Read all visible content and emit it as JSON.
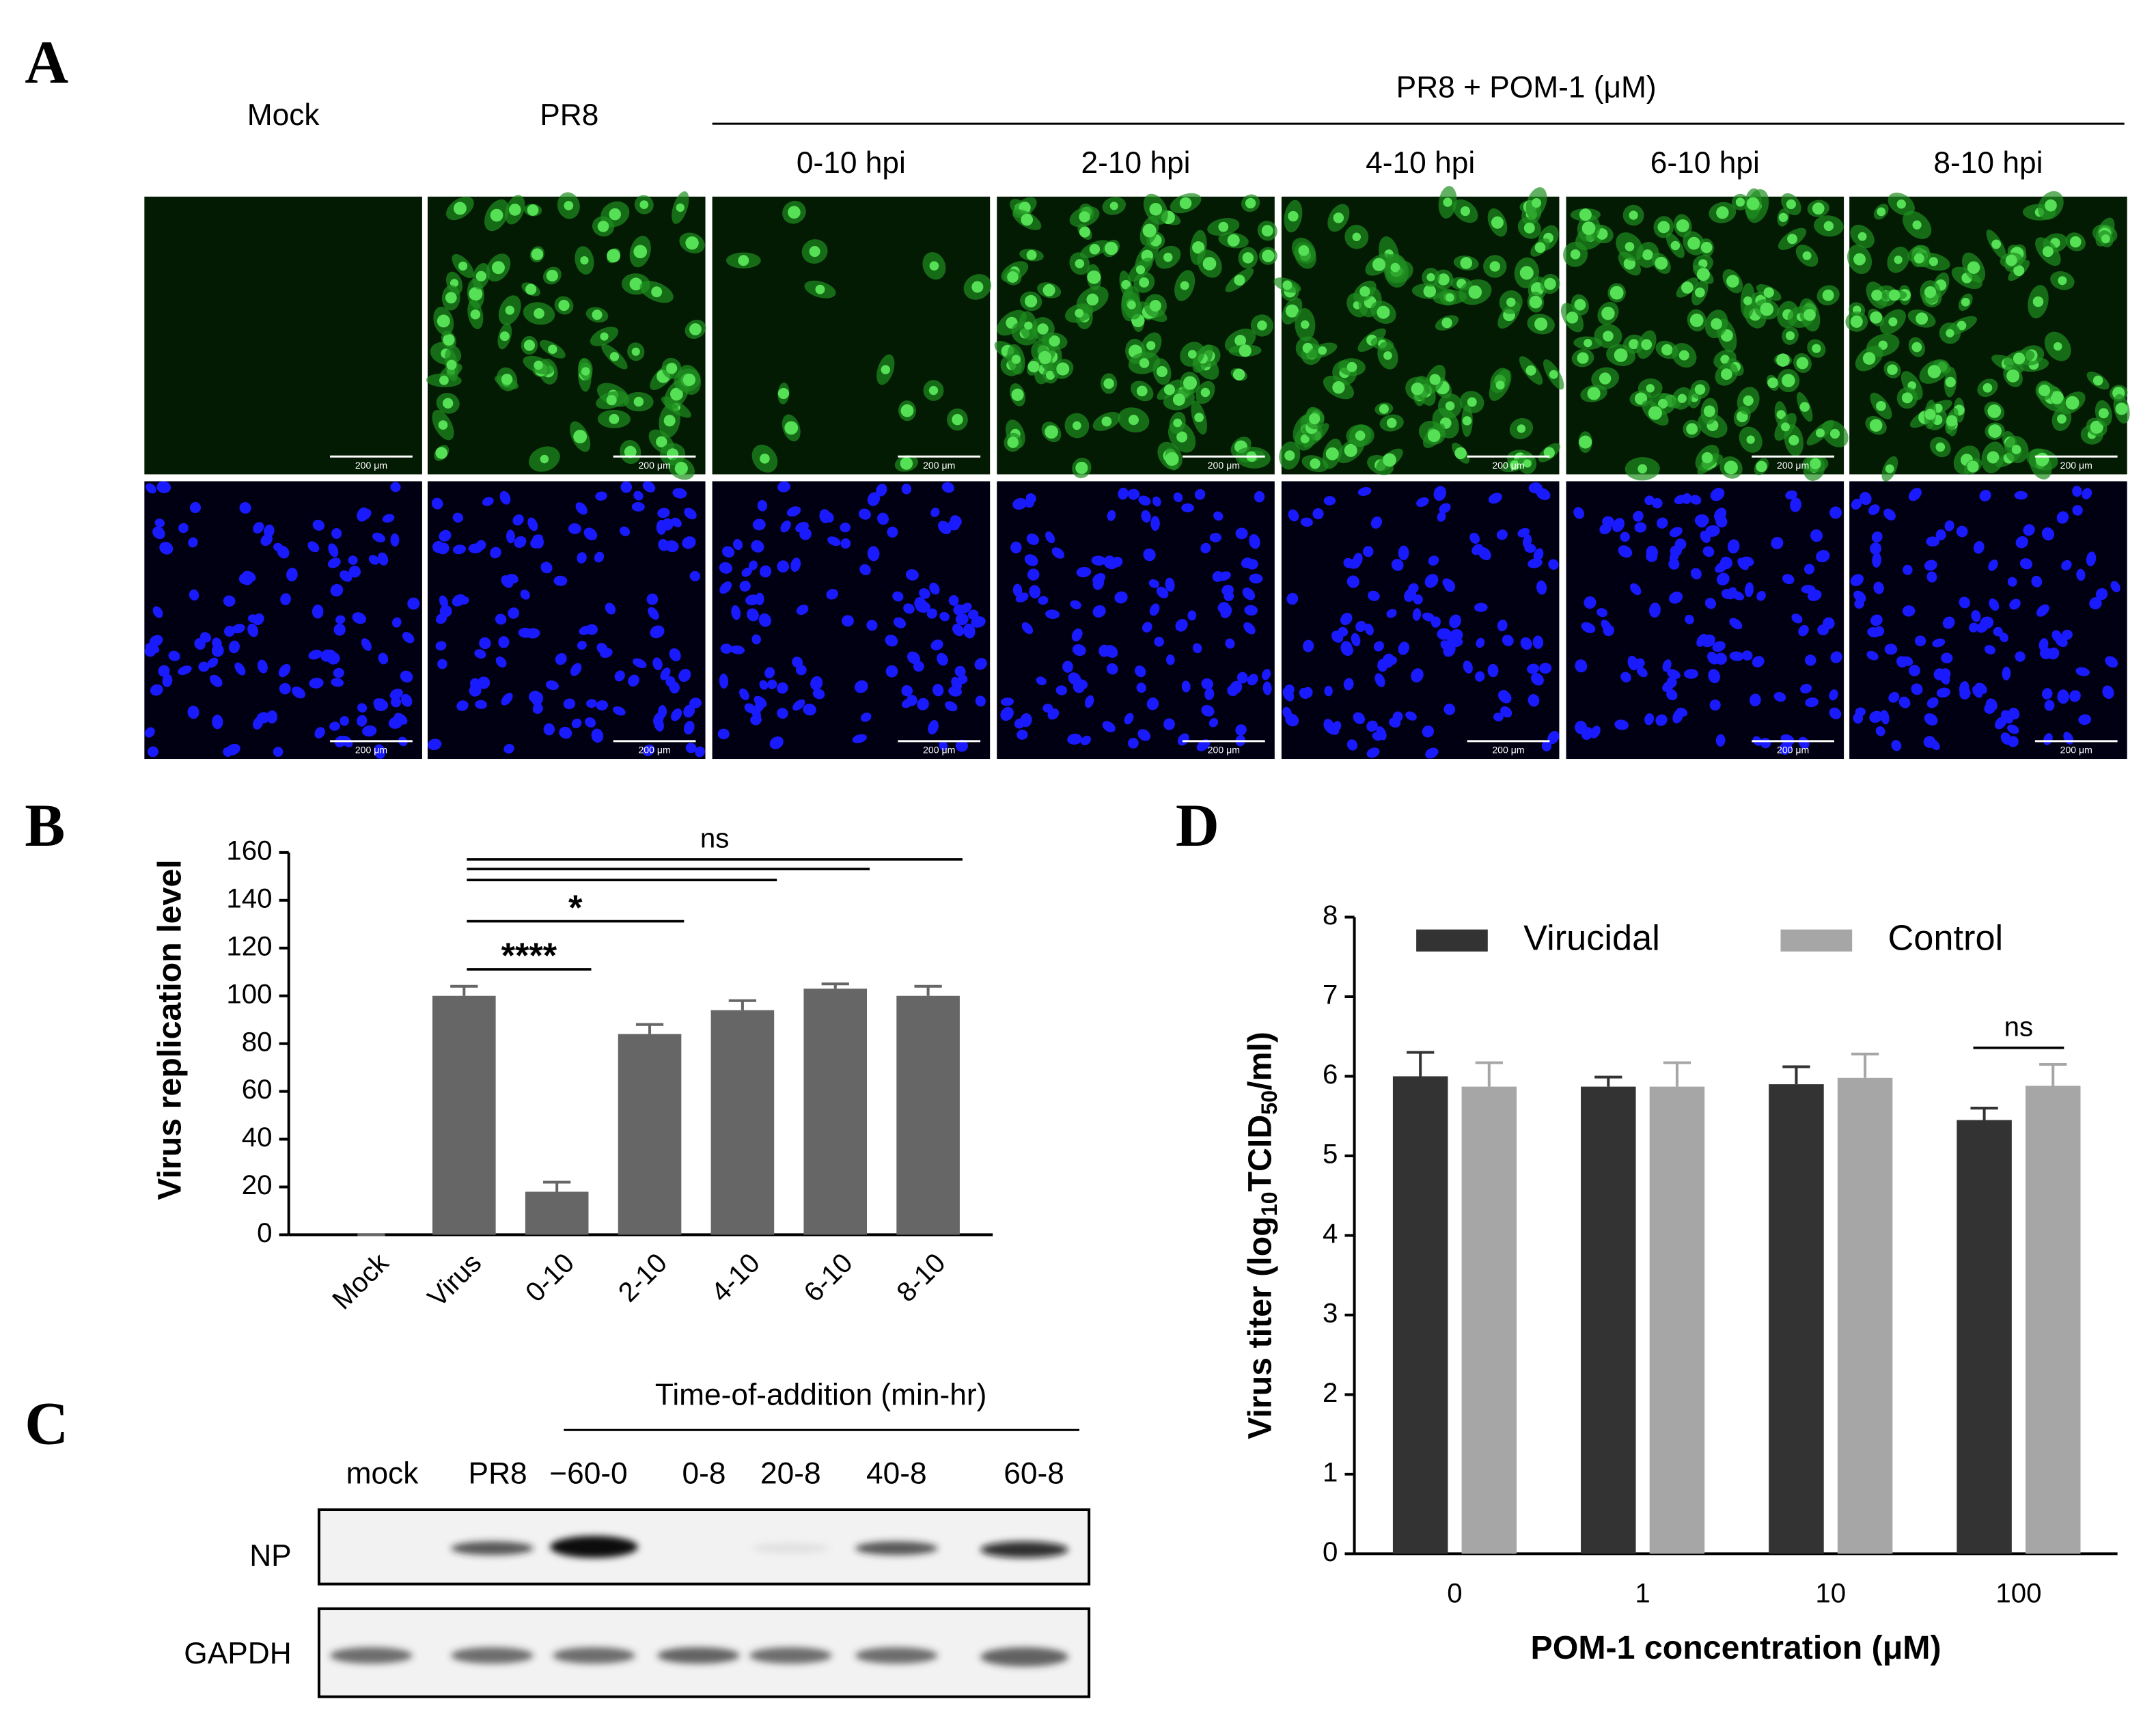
{
  "panels": {
    "A": {
      "letter": "A",
      "columns": [
        "Mock",
        "PR8"
      ],
      "group_label": "PR8 + POM-1 (μM)",
      "group_columns": [
        "0-10 hpi",
        "2-10 hpi",
        "4-10 hpi",
        "6-10 hpi",
        "8-10 hpi"
      ],
      "scale_bar": "200 μm"
    },
    "B": {
      "letter": "B"
    },
    "C": {
      "letter": "C",
      "group_label": "Time-of-addition (min-hr)",
      "lanes": [
        "mock",
        "PR8",
        "−60-0",
        "0-8",
        "20-8",
        "40-8",
        "60-8"
      ],
      "rows": [
        "NP",
        "GAPDH"
      ]
    },
    "D": {
      "letter": "D"
    }
  },
  "chart_data": [
    {
      "type": "bar",
      "y_label": "Virus replication level",
      "categories": [
        "Mock",
        "Virus",
        "0-10",
        "2-10",
        "4-10",
        "6-10",
        "8-10"
      ],
      "values": [
        0,
        100,
        18,
        84,
        94,
        103,
        100
      ],
      "errors": [
        0,
        4,
        4,
        4,
        4,
        2,
        4
      ],
      "color": "#666666",
      "ylim": [
        0,
        160
      ],
      "yticks": [
        0,
        20,
        40,
        60,
        80,
        100,
        120,
        140,
        160
      ],
      "comparisons": [
        {
          "label": "****",
          "pair": [
            "Virus",
            "0-10"
          ]
        },
        {
          "label": "*",
          "pair": [
            "Virus",
            "2-10"
          ]
        },
        {
          "pair": [
            "Virus",
            "4-10"
          ]
        },
        {
          "pair": [
            "Virus",
            "6-10"
          ]
        },
        {
          "label": "ns",
          "pair": [
            "Virus",
            "8-10"
          ]
        }
      ]
    },
    {
      "type": "bar",
      "y_label": [
        "Virus titer (log",
        "10",
        "TCID",
        "50",
        "/ml)"
      ],
      "x_label": "POM-1 concentration (μM)",
      "categories": [
        "0",
        "1",
        "10",
        "100"
      ],
      "series": [
        {
          "name": "Virucidal",
          "color": "#333333",
          "values": [
            6.0,
            5.87,
            5.9,
            5.45
          ],
          "errors": [
            0.3,
            0.12,
            0.22,
            0.15
          ]
        },
        {
          "name": "Control",
          "color": "#a6a6a6",
          "values": [
            5.87,
            5.87,
            5.98,
            5.88
          ],
          "errors": [
            0.3,
            0.3,
            0.3,
            0.27
          ]
        }
      ],
      "ylim": [
        0,
        8
      ],
      "yticks": [
        0,
        1,
        2,
        3,
        4,
        5,
        6,
        7,
        8
      ],
      "legend": "top",
      "comparisons": [
        {
          "label": "ns",
          "category": "100"
        }
      ]
    }
  ]
}
